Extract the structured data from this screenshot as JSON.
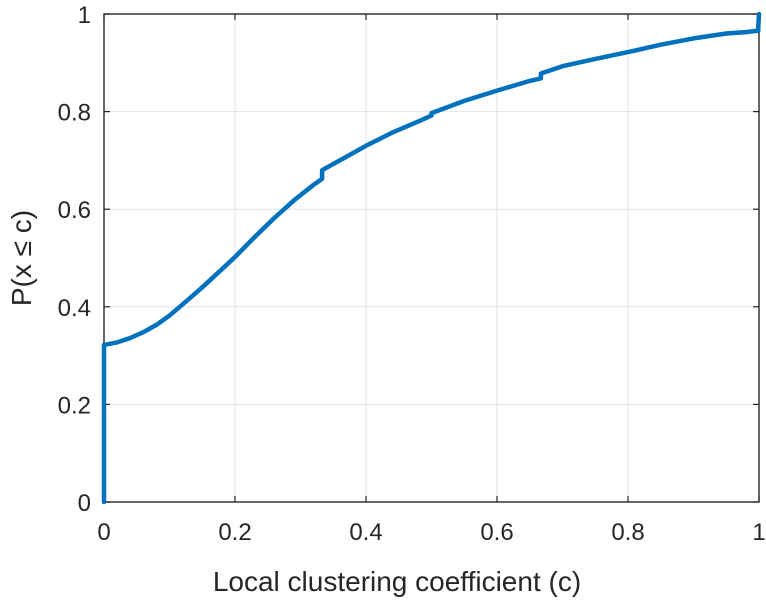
{
  "chart_data": {
    "type": "line",
    "xlabel": "Local clustering coefficient (c)",
    "ylabel": "P(x ≤ c)",
    "xlim": [
      0,
      1
    ],
    "ylim": [
      0,
      1
    ],
    "xticks": [
      0,
      0.2,
      0.4,
      0.6,
      0.8,
      1
    ],
    "xtick_labels": [
      "0",
      "0.2",
      "0.4",
      "0.6",
      "0.8",
      "1"
    ],
    "yticks": [
      0,
      0.2,
      0.4,
      0.6,
      0.8,
      1
    ],
    "ytick_labels": [
      "0",
      "0.2",
      "0.4",
      "0.6",
      "0.8",
      "1"
    ],
    "grid": true,
    "series": [
      {
        "color": "#0072bd",
        "x": [
          0,
          0,
          0.02,
          0.04,
          0.06,
          0.08,
          0.1,
          0.12,
          0.15,
          0.18,
          0.2,
          0.23,
          0.26,
          0.29,
          0.32,
          0.333,
          0.333,
          0.36,
          0.4,
          0.44,
          0.48,
          0.5,
          0.5,
          0.55,
          0.6,
          0.65,
          0.667,
          0.667,
          0.7,
          0.75,
          0.8,
          0.85,
          0.9,
          0.95,
          0.98,
          0.999,
          0.999,
          1.0
        ],
        "y": [
          0,
          0.322,
          0.327,
          0.336,
          0.348,
          0.363,
          0.382,
          0.405,
          0.44,
          0.477,
          0.502,
          0.543,
          0.582,
          0.618,
          0.65,
          0.662,
          0.68,
          0.7,
          0.73,
          0.757,
          0.78,
          0.792,
          0.797,
          0.822,
          0.843,
          0.863,
          0.868,
          0.878,
          0.893,
          0.908,
          0.922,
          0.937,
          0.95,
          0.96,
          0.963,
          0.966,
          0.975,
          1.0
        ]
      }
    ]
  }
}
